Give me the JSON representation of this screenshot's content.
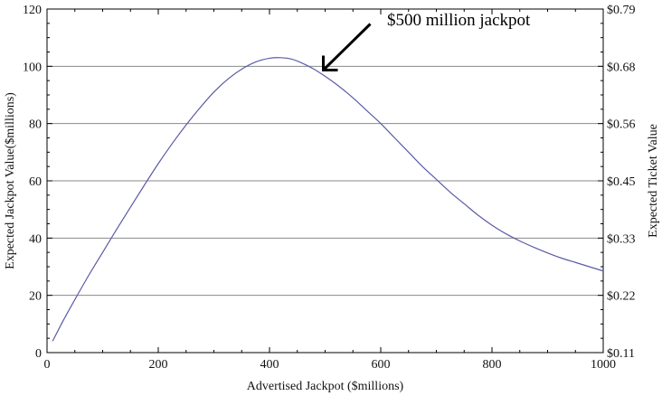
{
  "chart_data": {
    "type": "line",
    "xlabel": "Advertised Jackpot ($millions)",
    "ylabel": "Expected Jackpot Value($millions)",
    "y2label": "Expected Ticket Value",
    "xlim": [
      0,
      1000
    ],
    "ylim": [
      0,
      120
    ],
    "x_ticks": [
      "0",
      "200",
      "400",
      "600",
      "800",
      "1000"
    ],
    "y_ticks": [
      "0",
      "20",
      "40",
      "60",
      "80",
      "100",
      "120"
    ],
    "y2_ticks": [
      "$0.11",
      "$0.22",
      "$0.33",
      "$0.45",
      "$0.56",
      "$0.68",
      "$0.79"
    ],
    "grid": "horizontal",
    "annotation": "$500 million jackpot",
    "annotation_target": {
      "x": 500,
      "y": 99
    },
    "series": [
      {
        "color": "#5b5ba6",
        "x": [
          10,
          30,
          50,
          75,
          100,
          125,
          150,
          175,
          200,
          225,
          250,
          275,
          300,
          325,
          350,
          375,
          400,
          420,
          440,
          460,
          480,
          500,
          525,
          550,
          575,
          600,
          625,
          650,
          675,
          700,
          725,
          750,
          775,
          800,
          825,
          850,
          875,
          900,
          925,
          950,
          975,
          1000
        ],
        "y": [
          4,
          11.5,
          18.5,
          27,
          35,
          43,
          50.8,
          58.5,
          66,
          73,
          79.5,
          85.5,
          91,
          95.5,
          99,
          101.5,
          102.8,
          103,
          102.5,
          101,
          99,
          96.5,
          93,
          89,
          84.5,
          80,
          75,
          70,
          65,
          60.5,
          56,
          52,
          48,
          44.5,
          41.5,
          39,
          36.8,
          34.8,
          33,
          31.5,
          30,
          28.5
        ]
      }
    ]
  }
}
